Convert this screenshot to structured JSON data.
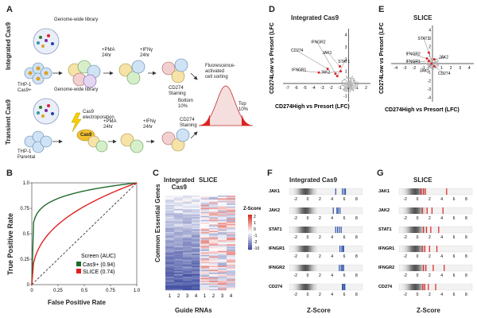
{
  "panels": {
    "a": "A",
    "b": "B",
    "c": "C",
    "d": "D",
    "e": "E",
    "f": "F",
    "g": "G"
  },
  "schematic": {
    "row1_label": "Integrated Cas9",
    "row2_label": "Transient Cas9",
    "library1": "Genome-wide library",
    "library2": "Genome-wide library",
    "cell1": "THP-1\nCas9+",
    "cell2": "THP-1\nParental",
    "cas9": "Cas9",
    "electroporation": "Cas9\nelectroporation",
    "pma1": "+PMA\n24hr",
    "ifn1": "+IFNγ\n24hr",
    "pma2": "+PMA\n24hr",
    "ifn2": "+IFNγ\n24hr",
    "staining1": "CD274\nStaining",
    "staining2": "CD274\nStaining",
    "facs": "Fluorescence-\nactivated\ncell sorting",
    "bottom": "Bottom\n10%",
    "top": "Top\n10%"
  },
  "roc": {
    "ylabel": "True Positive Rate",
    "xlabel": "False Positive Rate",
    "legend_title": "Screen (AUC)",
    "legend": [
      "Cas9+ (0.94)",
      "SLICE (0.74)"
    ],
    "xticks": [
      "0",
      "0.25",
      "0.5",
      "0.75",
      "1.0"
    ],
    "yticks": [
      "0",
      "0.25",
      "0.5",
      "0.75",
      "1.0"
    ]
  },
  "heatmap": {
    "title1": "Integrated\nCas9",
    "title2": "SLICE",
    "ylabel": "Common Essential Genes",
    "xlabel": "Guide RNAs",
    "cols": [
      "1",
      "2",
      "3",
      "4",
      "1",
      "2",
      "3",
      "4"
    ],
    "zlabel": "Z-Score",
    "zticks": [
      "2",
      "1",
      "0",
      "-1",
      "-2",
      "-10"
    ]
  },
  "scatter_d": {
    "title": "Integrated Cas9",
    "xlabel": "CD274High vs Presort (LFC)",
    "ylabel": "CD274Low vs Presort (LFC)",
    "xticks": [
      "-7",
      "-6",
      "-5",
      "-4",
      "-3",
      "-2",
      "-1",
      "0",
      "1",
      "2"
    ],
    "yticks": [
      "-1",
      "0",
      "1",
      "2",
      "3",
      "4"
    ],
    "labels": [
      "IFNGR2",
      "CD274",
      "JAK1",
      "IFNGR1",
      "STAT1",
      "JAK2"
    ]
  },
  "scatter_e": {
    "title": "SLICE",
    "xlabel": "CD274High vs Presort (LFC)",
    "ylabel": "CD274Low vs Presort (LFC)",
    "xticks": [
      "-4",
      "-3",
      "-2",
      "-1",
      "0",
      "1",
      "2",
      "3",
      "4"
    ],
    "yticks": [
      "-4",
      "-3",
      "-2",
      "-1",
      "0",
      "1",
      "2",
      "3",
      "4"
    ],
    "labels": [
      "STAT1",
      "IFNGR2",
      "JAK2",
      "IFNGR1",
      "JAK1",
      "CD274"
    ]
  },
  "zpanel_f": {
    "title": "Integrated Cas9",
    "xlabel": "Z-Score",
    "genes": [
      "JAK1",
      "JAK2",
      "STAT1",
      "IFNGR1",
      "IFNGR2",
      "CD274"
    ],
    "ticks": [
      "-2",
      "0",
      "2",
      "4",
      "6",
      "8"
    ],
    "guides": [
      [
        4.6,
        5.7,
        6.0,
        6.2
      ],
      [
        4.2,
        4.8,
        5.0,
        5.3
      ],
      [
        4.6,
        4.9,
        5.2,
        5.5
      ],
      [
        5.3,
        5.6,
        5.8,
        5.9
      ],
      [
        5.2,
        5.5,
        5.7,
        5.9
      ],
      [
        5.7,
        5.8,
        6.0,
        6.1
      ]
    ]
  },
  "zpanel_g": {
    "title": "SLICE",
    "xlabel": "Z-Score",
    "genes": [
      "JAK1",
      "JAK2",
      "STAT1",
      "IFNGR1",
      "IFNGR2",
      "CD274"
    ],
    "ticks": [
      "-2",
      "0",
      "2",
      "4",
      "6",
      "8"
    ],
    "guides": [
      [
        0.6,
        1.0,
        1.3,
        4.8
      ],
      [
        0.8,
        1.6,
        2.4,
        4.2
      ],
      [
        1.0,
        1.5,
        2.2,
        3.5
      ],
      [
        0.8,
        1.2,
        2.0,
        3.2
      ],
      [
        1.0,
        1.4,
        2.6,
        4.4
      ],
      [
        0.9,
        1.2,
        1.8,
        3.0
      ]
    ]
  },
  "colors": {
    "cas9": "#1f6b2b",
    "slice": "#e02020",
    "blue_guide": "#2b4fa8",
    "red_guide": "#e02020",
    "heat_pos": "#d73027",
    "heat_neg": "#4451a3",
    "point_gray": "#b5b5b5"
  }
}
